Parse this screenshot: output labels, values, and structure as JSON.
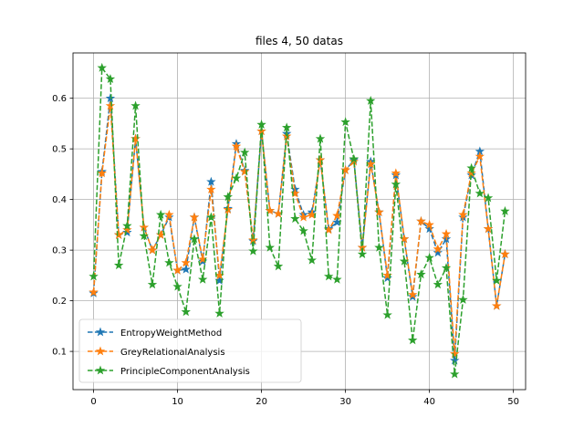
{
  "chart_data": {
    "type": "line",
    "title": "files 4, 50 datas",
    "xlabel": "",
    "ylabel": "",
    "xlim": [
      -2.45,
      51.45
    ],
    "ylim": [
      0.0245,
      0.6895
    ],
    "xticks": [
      0,
      10,
      20,
      30,
      40,
      50
    ],
    "yticks": [
      0.1,
      0.2,
      0.3,
      0.4,
      0.5,
      0.6
    ],
    "grid": true,
    "legend_position": "lower-left",
    "x": [
      0,
      1,
      2,
      3,
      4,
      5,
      6,
      7,
      8,
      9,
      10,
      11,
      12,
      13,
      14,
      15,
      16,
      17,
      18,
      19,
      20,
      21,
      22,
      23,
      24,
      25,
      26,
      27,
      28,
      29,
      30,
      31,
      32,
      33,
      34,
      35,
      36,
      37,
      38,
      39,
      40,
      41,
      42,
      43,
      44,
      45,
      46,
      47,
      48,
      49
    ],
    "series": [
      {
        "name": "EntropyWeightMethod",
        "color": "#1f77b4",
        "values": [
          0.215,
          0.455,
          0.6,
          0.33,
          0.335,
          0.52,
          0.345,
          0.3,
          0.33,
          0.365,
          0.26,
          0.262,
          0.365,
          0.278,
          0.435,
          0.24,
          0.382,
          0.51,
          0.457,
          0.318,
          0.535,
          0.378,
          0.372,
          0.53,
          0.42,
          0.37,
          0.375,
          0.478,
          0.342,
          0.355,
          0.458,
          0.478,
          0.305,
          0.475,
          0.375,
          0.245,
          0.448,
          0.322,
          0.208,
          0.357,
          0.342,
          0.295,
          0.322,
          0.082,
          0.365,
          0.448,
          0.495,
          0.342,
          0.19,
          0.292
        ]
      },
      {
        "name": "GreyRelationalAnalysis",
        "color": "#ff7f0e",
        "values": [
          0.217,
          0.452,
          0.585,
          0.33,
          0.34,
          0.52,
          0.345,
          0.3,
          0.33,
          0.37,
          0.26,
          0.275,
          0.365,
          0.282,
          0.42,
          0.25,
          0.38,
          0.505,
          0.455,
          0.32,
          0.535,
          0.378,
          0.372,
          0.525,
          0.412,
          0.365,
          0.37,
          0.478,
          0.34,
          0.368,
          0.458,
          0.475,
          0.305,
          0.47,
          0.375,
          0.25,
          0.452,
          0.322,
          0.212,
          0.357,
          0.35,
          0.302,
          0.332,
          0.095,
          0.37,
          0.452,
          0.485,
          0.342,
          0.19,
          0.292
        ]
      },
      {
        "name": "PrincipleComponentAnalysis",
        "color": "#2ca02c",
        "values": [
          0.248,
          0.66,
          0.638,
          0.27,
          0.348,
          0.585,
          0.328,
          0.232,
          0.37,
          0.275,
          0.228,
          0.178,
          0.322,
          0.242,
          0.365,
          0.175,
          0.405,
          0.442,
          0.493,
          0.298,
          0.548,
          0.305,
          0.268,
          0.542,
          0.362,
          0.338,
          0.28,
          0.52,
          0.248,
          0.242,
          0.553,
          0.48,
          0.292,
          0.595,
          0.305,
          0.172,
          0.43,
          0.278,
          0.122,
          0.252,
          0.285,
          0.232,
          0.265,
          0.055,
          0.202,
          0.462,
          0.412,
          0.403,
          0.24,
          0.377
        ]
      }
    ]
  }
}
